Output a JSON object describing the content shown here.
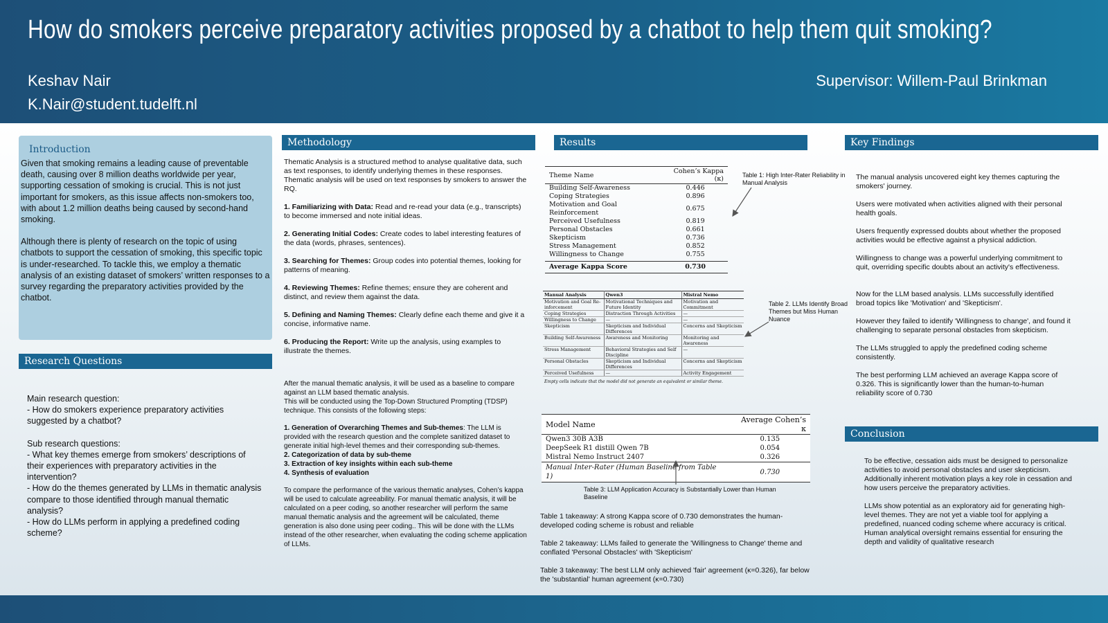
{
  "header": {
    "title": "How do smokers perceive preparatory activities proposed by a chatbot to help them quit smoking?",
    "author": "Keshav Nair",
    "email": "K.Nair@student.tudelft.nl",
    "supervisor": "Supervisor: Willem-Paul Brinkman"
  },
  "introduction": {
    "title": "Introduction",
    "paragraphs": [
      "Given that smoking remains a leading cause of preventable death, causing over 8 million deaths worldwide per year, supporting cessation of smoking is crucial. This is not just important for smokers, as this issue affects non-smokers too, with about 1.2 million deaths being caused by second-hand smoking.",
      "Although there is plenty of research on the topic of using chatbots to support the cessation of smoking, this specific topic is under-researched. To tackle this, we employ a thematic analysis of an existing dataset of smokers’ written responses to a survey regarding the preparatory activities provided by the chatbot."
    ]
  },
  "research_questions": {
    "title": "Research Questions",
    "main_label": "Main research question:",
    "main_q": "- How do smokers experience preparatory activities suggested by a chatbot?",
    "sub_label": "Sub research questions:",
    "sub_q1": "- What key themes emerge from smokers’ descriptions of their experiences with preparatory activities in the intervention?",
    "sub_q2": "- How do the themes generated by LLMs in thematic analysis compare to those identified through manual thematic analysis?",
    "sub_q3": "- How do LLMs perform in applying a predefined coding scheme?"
  },
  "methodology": {
    "title": "Methodology",
    "intro": "Thematic Analysis is a structured method to analyse qualitative data, such as text responses, to identify underlying themes in these responses. Thematic analysis will be used on text responses by smokers to answer the RQ.",
    "steps": [
      {
        "head": "1. Familiarizing with Data:",
        "text": " Read and re-read your data (e.g., transcripts) to become immersed and note initial ideas."
      },
      {
        "head": "2. Generating Initial Codes:",
        "text": " Create codes to label interesting features of the data (words, phrases, sentences)."
      },
      {
        "head": "3. Searching for Themes:",
        "text": " Group codes into potential themes, looking for patterns of meaning."
      },
      {
        "head": "4. Reviewing Themes:",
        "text": " Refine themes; ensure they are coherent and distinct, and review them against the data."
      },
      {
        "head": "5. Defining and Naming Themes:",
        "text": " Clearly define each theme and give it a concise, informative name."
      },
      {
        "head": "6. Producing the Report:",
        "text": " Write up the analysis, using examples to illustrate the themes."
      }
    ],
    "llm_intro_1": "After the manual thematic analysis, it will be used as a baseline to compare against an LLM based thematic analysis.",
    "llm_intro_2": "This will be conducted using the Top-Down Structured Prompting (TDSP) technique. This consists of the following steps:",
    "tdsp_1_head": "1. Generation of Overarching Themes and Sub-themes",
    "tdsp_1_text": ": The LLM is provided with the research question and the complete sanitized dataset to generate initial high-level themes and their corresponding sub-themes.",
    "tdsp_2": "2. Categorization of data by sub-theme",
    "tdsp_3": "3. Extraction of key insights within each sub-theme",
    "tdsp_4": "4. Synthesis of evaluation",
    "kappa_text": "To compare the performance of the various thematic analyses, Cohen’s kappa will be used to calculate agreeability. For manual thematic analysis, it will be calculated on a peer coding, so another researcher will perform the same manual thematic analysis and the agreement will be calculated, theme generation is also done using peer coding.. This will be done with the LLMs instead of the other researcher, when evaluating  the coding scheme application of LLMs."
  },
  "results": {
    "title": "Results",
    "table1": {
      "col_theme": "Theme Name",
      "col_kappa": "Cohen’s Kappa (κ)",
      "rows": [
        {
          "name": "Building Self-Awareness",
          "kappa": "0.446"
        },
        {
          "name": "Coping Strategies",
          "kappa": "0.896"
        },
        {
          "name": "Motivation and Goal Reinforcement",
          "kappa": "0.675"
        },
        {
          "name": "Perceived Usefulness",
          "kappa": "0.819"
        },
        {
          "name": "Personal Obstacles",
          "kappa": "0.661"
        },
        {
          "name": "Skepticism",
          "kappa": "0.736"
        },
        {
          "name": "Stress Management",
          "kappa": "0.852"
        },
        {
          "name": "Willingness to Change",
          "kappa": "0.755"
        }
      ],
      "avg_label": "Average Kappa Score",
      "avg_value": "0.730",
      "caption": "Table 1: High Inter-Rater Reliability in Manual Analysis"
    },
    "table2": {
      "col_manual": "Manual Analysis",
      "col_qwen": "Qwen3",
      "col_mistral": "Mistral Nemo",
      "rows": [
        {
          "manual": "Motivation and Goal Re-inforcement",
          "qwen": "Motivational Techniques and Future Identity",
          "mistral": "Motivation and Commitment"
        },
        {
          "manual": "Coping Strategies",
          "qwen": "Distraction Through Activities",
          "mistral": "—"
        },
        {
          "manual": "Willingness to Change",
          "qwen": "—",
          "mistral": "—"
        },
        {
          "manual": "Skepticism",
          "qwen": "Skepticism and Individual Differences",
          "mistral": "Concerns and Skepticism"
        },
        {
          "manual": "Building Self-Awareness",
          "qwen": "Awareness and Monitoring",
          "mistral": "Monitoring and Awareness"
        },
        {
          "manual": "Stress Management",
          "qwen": "Behavioral Strategies and Self Discipline",
          "mistral": "—"
        },
        {
          "manual": "Personal Obstacles",
          "qwen": "Skepticism and Individual Differences",
          "mistral": "Concerns and Skepticism"
        },
        {
          "manual": "Perceived Usefulness",
          "qwen": "—",
          "mistral": "Activity Engagement"
        }
      ],
      "note": "Empty cells indicate that the model did not generate an equivalent or similar theme.",
      "caption": "Table 2. LLMs Identify Broad Themes but Miss Human Nuance"
    },
    "table3": {
      "col_model": "Model Name",
      "col_kappa": "Average Cohen’s κ",
      "rows": [
        {
          "model": "Qwen3 30B A3B",
          "kappa": "0.135"
        },
        {
          "model": "DeepSeek R1 distill Qwen 7B",
          "kappa": "0.054"
        },
        {
          "model": "Mistral Nemo Instruct 2407",
          "kappa": "0.326"
        }
      ],
      "manual_label": "Manual Inter-Rater (Human Baseline from Table 1)",
      "manual_value": "0.730",
      "caption": "Table 3: LLM Application Accuracy is Substantially Lower than Human Baseline"
    },
    "takeaways": [
      "Table 1 takeaway: A strong Kappa score of 0.730 demonstrates the human-developed coding scheme is robust and reliable",
      "Table 2 takeaway: LLMs failed to generate the 'Willingness to Change' theme and conflated 'Personal Obstacles' with 'Skepticism'",
      "Table 3 takeaway: The best LLM only achieved 'fair' agreement (κ=0.326), far below the 'substantial' human agreement (κ=0.730)"
    ]
  },
  "key_findings": {
    "title": "Key Findings",
    "items": [
      "The manual analysis uncovered eight key themes capturing the smokers' journey.",
      "Users were motivated when activities aligned with their personal health goals.",
      "Users frequently expressed doubts about whether the proposed activities would be effective against a physical addiction.",
      "Willingness to change was a powerful underlying commitment to quit, overriding specific doubts about an activity's effectiveness.",
      "Now for the LLM based analysis. LLMs successfully identified broad topics like 'Motivation' and 'Skepticism'.",
      "However they failed to identify 'Willingness to change', and found it challenging to separate personal obstacles from skepticism.",
      "The LLMs struggled to apply the predefined coding scheme consistently.",
      "The best performing LLM achieved an average Kappa score of 0.326. This is significantly lower than the human-to-human reliability score of 0.730"
    ]
  },
  "conclusion": {
    "title": "Conclusion",
    "paragraphs": [
      "To be effective, cessation aids must be designed to personalize activities to avoid personal obstacles and user skepticism. Additionally inherent motivation plays a key role in cessation and how users perceive the preparatory activities.",
      "LLMs show potential as an exploratory aid for generating high-level themes. They are not yet a viable tool for applying a predefined, nuanced coding scheme where accuracy is critical. Human analytical oversight remains essential for ensuring the depth and validity of qualitative research"
    ]
  }
}
